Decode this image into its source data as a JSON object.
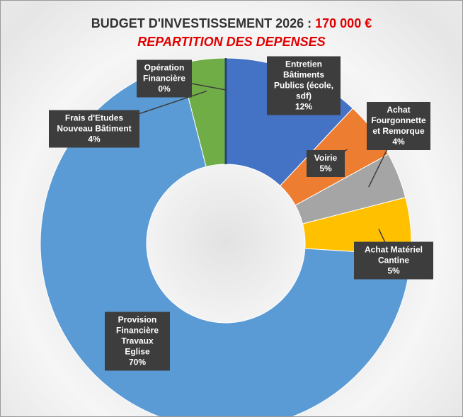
{
  "chart_data": {
    "type": "donut",
    "title": "BUDGET D'INVESTISSEMENT 2026 :",
    "title_amount": "170 000 €",
    "subtitle": "REPARTITION DES DEPENSES",
    "categories": [
      "Entretien Bâtiments Publics (école, sdf)",
      "Voirie",
      "Achat Fourgonnette et Remorque",
      "Achat Matériel Cantine",
      "Provision Financière Travaux Eglise",
      "Frais d'Etudes Nouveau Bâtiment",
      "Opération Financière"
    ],
    "values": [
      12,
      5,
      4,
      5,
      70,
      4,
      0
    ],
    "value_labels": [
      "12%",
      "5%",
      "4%",
      "5%",
      "70%",
      "4%",
      "0%"
    ],
    "colors": [
      "#4472c4",
      "#ed7d31",
      "#a5a5a5",
      "#ffc000",
      "#5b9bd5",
      "#70ad47",
      "#264478"
    ]
  }
}
